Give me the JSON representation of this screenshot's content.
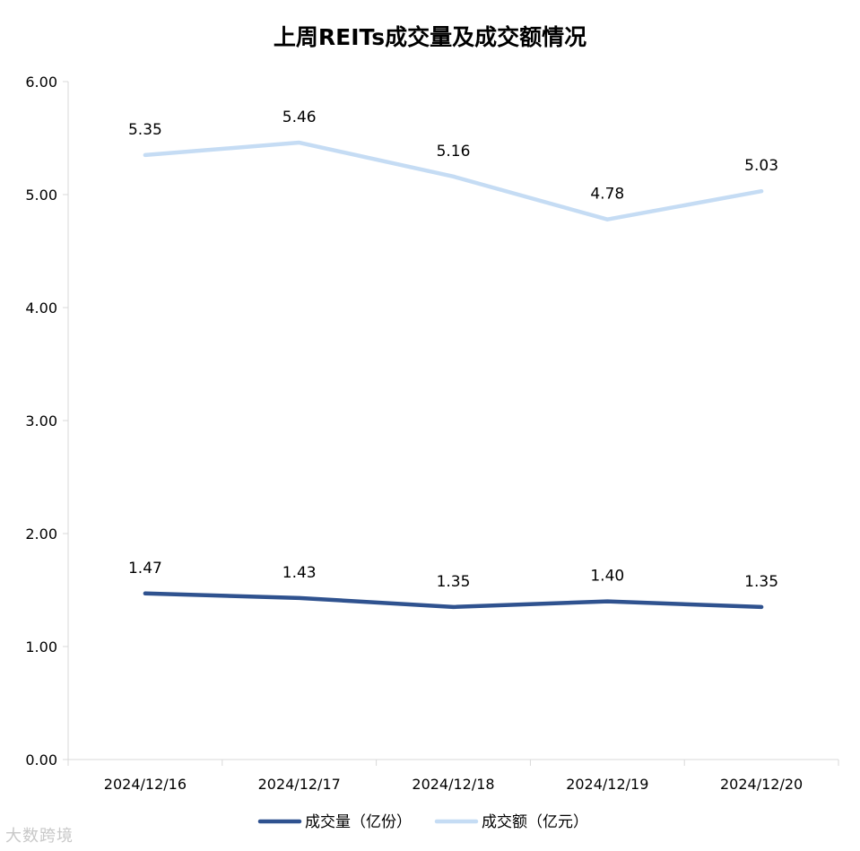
{
  "chart_data": {
    "type": "line",
    "title": "上周REITs成交量及成交额情况",
    "categories": [
      "2024/12/16",
      "2024/12/17",
      "2024/12/18",
      "2024/12/19",
      "2024/12/20"
    ],
    "series": [
      {
        "name": "成交量（亿份）",
        "values": [
          1.47,
          1.43,
          1.35,
          1.4,
          1.35
        ],
        "labels": [
          "1.47",
          "1.43",
          "1.35",
          "1.40",
          "1.35"
        ],
        "color": "#2f528f"
      },
      {
        "name": "成交额（亿元）",
        "values": [
          5.35,
          5.46,
          5.16,
          4.78,
          5.03
        ],
        "labels": [
          "5.35",
          "5.46",
          "5.16",
          "4.78",
          "5.03"
        ],
        "color": "#c5dcf4"
      }
    ],
    "yticks": [
      "0.00",
      "1.00",
      "2.00",
      "3.00",
      "4.00",
      "5.00",
      "6.00"
    ],
    "ylim": [
      0,
      6
    ],
    "grid": false,
    "legend_position": "bottom"
  },
  "watermark": "大数跨境"
}
